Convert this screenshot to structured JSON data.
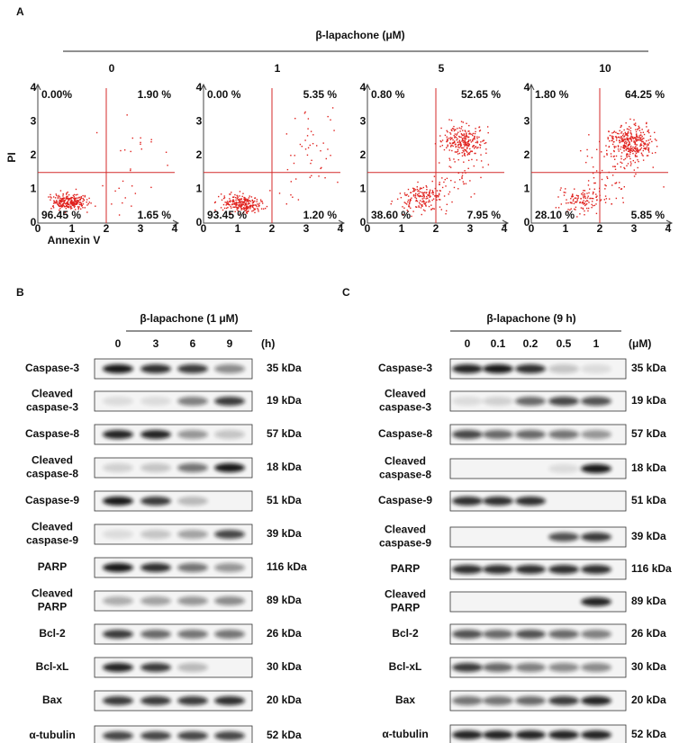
{
  "panel_a": {
    "label": "A",
    "treatment": "β-lapachone (μM)",
    "y_axis": "PI",
    "x_axis": "Annexin V",
    "ticks": [
      "0",
      "1",
      "2",
      "3",
      "4"
    ],
    "plots": [
      {
        "dose": "0",
        "quadrants": [
          "0.00%",
          "1.90 %",
          "96.45 %",
          "1.65 %"
        ]
      },
      {
        "dose": "1",
        "quadrants": [
          "0.00 %",
          "5.35 %",
          "93.45 %",
          "1.20 %"
        ]
      },
      {
        "dose": "5",
        "quadrants": [
          "0.80 %",
          "52.65 %",
          "38.60 %",
          "7.95 %"
        ]
      },
      {
        "dose": "10",
        "quadrants": [
          "1.80 %",
          "64.25 %",
          "28.10 %",
          "5.85 %"
        ]
      }
    ]
  },
  "panel_b": {
    "label": "B",
    "treatment": "β-lapachone (1 μM)",
    "lanes": [
      "0",
      "3",
      "6",
      "9"
    ],
    "unit": "(h)",
    "blots": [
      {
        "name": [
          "Caspase-3"
        ],
        "size": "35 kDa"
      },
      {
        "name": [
          "Cleaved",
          "caspase-3"
        ],
        "size": "19 kDa"
      },
      {
        "name": [
          "Caspase-8"
        ],
        "size": "57 kDa"
      },
      {
        "name": [
          "Cleaved",
          "caspase-8"
        ],
        "size": "18 kDa"
      },
      {
        "name": [
          "Caspase-9"
        ],
        "size": "51 kDa"
      },
      {
        "name": [
          "Cleaved",
          "caspase-9"
        ],
        "size": "39 kDa"
      },
      {
        "name": [
          "PARP"
        ],
        "size": "116 kDa"
      },
      {
        "name": [
          "Cleaved",
          "PARP"
        ],
        "size": "89 kDa"
      },
      {
        "name": [
          "Bcl-2"
        ],
        "size": "26 kDa"
      },
      {
        "name": [
          "Bcl-xL"
        ],
        "size": "30 kDa"
      },
      {
        "name": [
          "Bax"
        ],
        "size": "20 kDa"
      },
      {
        "name": [
          "α-tubulin"
        ],
        "size": "52 kDa"
      }
    ]
  },
  "panel_c": {
    "label": "C",
    "treatment": "β-lapachone (9 h)",
    "lanes": [
      "0",
      "0.1",
      "0.2",
      "0.5",
      "1"
    ],
    "unit": "(μM)",
    "blots": [
      {
        "name": [
          "Caspase-3"
        ],
        "size": "35 kDa"
      },
      {
        "name": [
          "Cleaved",
          "caspase-3"
        ],
        "size": "19 kDa"
      },
      {
        "name": [
          "Caspase-8"
        ],
        "size": "57 kDa"
      },
      {
        "name": [
          "Cleaved",
          "caspase-8"
        ],
        "size": "18 kDa"
      },
      {
        "name": [
          "Caspase-9"
        ],
        "size": "51 kDa"
      },
      {
        "name": [
          "Cleaved",
          "caspase-9"
        ],
        "size": "39 kDa"
      },
      {
        "name": [
          "PARP"
        ],
        "size": "116 kDa"
      },
      {
        "name": [
          "Cleaved",
          "PARP"
        ],
        "size": "89 kDa"
      },
      {
        "name": [
          "Bcl-2"
        ],
        "size": "26 kDa"
      },
      {
        "name": [
          "Bcl-xL"
        ],
        "size": "30 kDa"
      },
      {
        "name": [
          "Bax"
        ],
        "size": "20 kDa"
      },
      {
        "name": [
          "α-tubulin"
        ],
        "size": "52 kDa"
      }
    ]
  }
}
